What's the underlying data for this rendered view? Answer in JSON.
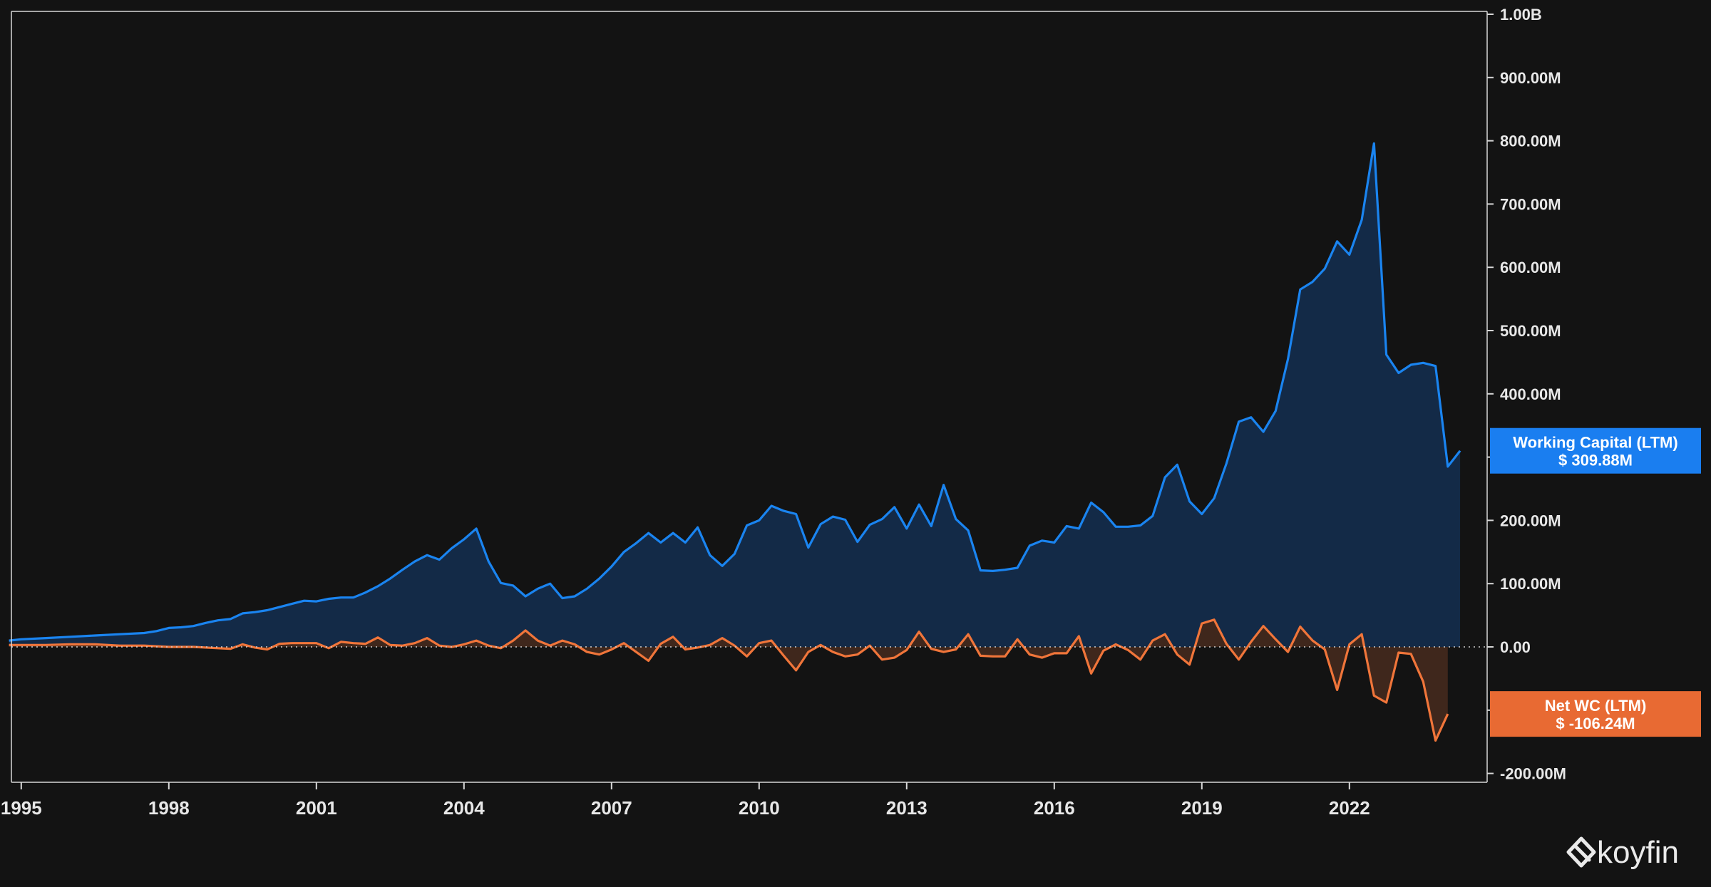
{
  "chart_data": {
    "type": "area",
    "title": "",
    "xlabel": "",
    "ylabel": "",
    "xlim": [
      1994.8,
      2024.8
    ],
    "ylim": [
      -220,
      1000
    ],
    "grid": false,
    "x_tick_labels": [
      "1995",
      "1998",
      "2001",
      "2004",
      "2007",
      "2010",
      "2013",
      "2016",
      "2019",
      "2022"
    ],
    "y_ticks": [
      {
        "value": 1000,
        "label": "1.00B"
      },
      {
        "value": 900,
        "label": "900.00M"
      },
      {
        "value": 800,
        "label": "800.00M"
      },
      {
        "value": 700,
        "label": "700.00M"
      },
      {
        "value": 600,
        "label": "600.00M"
      },
      {
        "value": 500,
        "label": "500.00M"
      },
      {
        "value": 400,
        "label": "400.00M"
      },
      {
        "value": 300,
        "label": "300.00M"
      },
      {
        "value": 200,
        "label": "200.00M"
      },
      {
        "value": 100,
        "label": "100.00M"
      },
      {
        "value": 0,
        "label": "0.00"
      },
      {
        "value": -100,
        "label": "-100.00M"
      },
      {
        "value": -200,
        "label": "-200.00M"
      }
    ],
    "unit": "M",
    "series": [
      {
        "name": "Working Capital (LTM)",
        "color": "#1a84f0",
        "fill": "#132a47",
        "last_value_label": "$ 309.88M",
        "points": [
          [
            1994.75,
            10
          ],
          [
            1995.0,
            12
          ],
          [
            1995.5,
            14
          ],
          [
            1996.0,
            16
          ],
          [
            1996.5,
            18
          ],
          [
            1997.0,
            20
          ],
          [
            1997.5,
            22
          ],
          [
            1997.75,
            25
          ],
          [
            1998.0,
            30
          ],
          [
            1998.25,
            31
          ],
          [
            1998.5,
            33
          ],
          [
            1998.75,
            38
          ],
          [
            1999.0,
            42
          ],
          [
            1999.25,
            44
          ],
          [
            1999.5,
            53
          ],
          [
            1999.75,
            55
          ],
          [
            2000.0,
            58
          ],
          [
            2000.25,
            63
          ],
          [
            2000.5,
            68
          ],
          [
            2000.75,
            73
          ],
          [
            2001.0,
            72
          ],
          [
            2001.25,
            76
          ],
          [
            2001.5,
            78
          ],
          [
            2001.75,
            78
          ],
          [
            2002.0,
            86
          ],
          [
            2002.25,
            96
          ],
          [
            2002.5,
            108
          ],
          [
            2002.75,
            122
          ],
          [
            2003.0,
            135
          ],
          [
            2003.25,
            145
          ],
          [
            2003.5,
            138
          ],
          [
            2003.75,
            156
          ],
          [
            2004.0,
            170
          ],
          [
            2004.25,
            187
          ],
          [
            2004.5,
            135
          ],
          [
            2004.75,
            101
          ],
          [
            2005.0,
            97
          ],
          [
            2005.25,
            80
          ],
          [
            2005.5,
            92
          ],
          [
            2005.75,
            100
          ],
          [
            2006.0,
            77
          ],
          [
            2006.25,
            80
          ],
          [
            2006.5,
            92
          ],
          [
            2006.75,
            108
          ],
          [
            2007.0,
            127
          ],
          [
            2007.25,
            150
          ],
          [
            2007.5,
            164
          ],
          [
            2007.75,
            180
          ],
          [
            2008.0,
            165
          ],
          [
            2008.25,
            180
          ],
          [
            2008.5,
            165
          ],
          [
            2008.75,
            189
          ],
          [
            2009.0,
            145
          ],
          [
            2009.25,
            128
          ],
          [
            2009.5,
            147
          ],
          [
            2009.75,
            192
          ],
          [
            2010.0,
            200
          ],
          [
            2010.25,
            223
          ],
          [
            2010.5,
            215
          ],
          [
            2010.75,
            210
          ],
          [
            2011.0,
            157
          ],
          [
            2011.25,
            194
          ],
          [
            2011.5,
            206
          ],
          [
            2011.75,
            201
          ],
          [
            2012.0,
            166
          ],
          [
            2012.25,
            193
          ],
          [
            2012.5,
            202
          ],
          [
            2012.75,
            221
          ],
          [
            2013.0,
            187
          ],
          [
            2013.25,
            225
          ],
          [
            2013.5,
            191
          ],
          [
            2013.75,
            256
          ],
          [
            2014.0,
            202
          ],
          [
            2014.25,
            184
          ],
          [
            2014.5,
            121
          ],
          [
            2014.75,
            120
          ],
          [
            2015.0,
            122
          ],
          [
            2015.25,
            125
          ],
          [
            2015.5,
            160
          ],
          [
            2015.75,
            168
          ],
          [
            2016.0,
            165
          ],
          [
            2016.25,
            191
          ],
          [
            2016.5,
            187
          ],
          [
            2016.75,
            228
          ],
          [
            2017.0,
            213
          ],
          [
            2017.25,
            190
          ],
          [
            2017.5,
            190
          ],
          [
            2017.75,
            192
          ],
          [
            2018.0,
            207
          ],
          [
            2018.25,
            268
          ],
          [
            2018.5,
            288
          ],
          [
            2018.75,
            230
          ],
          [
            2019.0,
            210
          ],
          [
            2019.25,
            235
          ],
          [
            2019.5,
            290
          ],
          [
            2019.75,
            356
          ],
          [
            2020.0,
            363
          ],
          [
            2020.25,
            340
          ],
          [
            2020.5,
            373
          ],
          [
            2020.75,
            455
          ],
          [
            2021.0,
            565
          ],
          [
            2021.25,
            577
          ],
          [
            2021.5,
            598
          ],
          [
            2021.75,
            641
          ],
          [
            2022.0,
            620
          ],
          [
            2022.25,
            675
          ],
          [
            2022.5,
            796
          ],
          [
            2022.75,
            462
          ],
          [
            2023.0,
            433
          ],
          [
            2023.25,
            446
          ],
          [
            2023.5,
            449
          ],
          [
            2023.75,
            444
          ],
          [
            2024.0,
            285
          ],
          [
            2024.25,
            310
          ]
        ]
      },
      {
        "name": "Net WC (LTM)",
        "color": "#f0753a",
        "fill": "#3f271c",
        "last_value_label": "$ -106.24M",
        "points": [
          [
            1994.75,
            3
          ],
          [
            1995.0,
            3
          ],
          [
            1995.5,
            3
          ],
          [
            1996.0,
            4
          ],
          [
            1996.5,
            4
          ],
          [
            1997.0,
            2
          ],
          [
            1997.5,
            2
          ],
          [
            1998.0,
            0
          ],
          [
            1998.5,
            0
          ],
          [
            1999.0,
            -2
          ],
          [
            1999.25,
            -3
          ],
          [
            1999.5,
            4
          ],
          [
            1999.75,
            -1
          ],
          [
            2000.0,
            -4
          ],
          [
            2000.25,
            5
          ],
          [
            2000.5,
            6
          ],
          [
            2000.75,
            6
          ],
          [
            2001.0,
            6
          ],
          [
            2001.25,
            -2
          ],
          [
            2001.5,
            8
          ],
          [
            2001.75,
            6
          ],
          [
            2002.0,
            5
          ],
          [
            2002.25,
            15
          ],
          [
            2002.5,
            3
          ],
          [
            2002.75,
            2
          ],
          [
            2003.0,
            6
          ],
          [
            2003.25,
            14
          ],
          [
            2003.5,
            2
          ],
          [
            2003.75,
            0
          ],
          [
            2004.0,
            4
          ],
          [
            2004.25,
            10
          ],
          [
            2004.5,
            2
          ],
          [
            2004.75,
            -2
          ],
          [
            2005.0,
            10
          ],
          [
            2005.25,
            26
          ],
          [
            2005.5,
            10
          ],
          [
            2005.75,
            2
          ],
          [
            2006.0,
            10
          ],
          [
            2006.25,
            4
          ],
          [
            2006.5,
            -8
          ],
          [
            2006.75,
            -12
          ],
          [
            2007.0,
            -4
          ],
          [
            2007.25,
            6
          ],
          [
            2007.5,
            -8
          ],
          [
            2007.75,
            -22
          ],
          [
            2008.0,
            5
          ],
          [
            2008.25,
            16
          ],
          [
            2008.5,
            -4
          ],
          [
            2008.75,
            -1
          ],
          [
            2009.0,
            3
          ],
          [
            2009.25,
            14
          ],
          [
            2009.5,
            2
          ],
          [
            2009.75,
            -15
          ],
          [
            2010.0,
            6
          ],
          [
            2010.25,
            10
          ],
          [
            2010.5,
            -14
          ],
          [
            2010.75,
            -37
          ],
          [
            2011.0,
            -8
          ],
          [
            2011.25,
            3
          ],
          [
            2011.5,
            -8
          ],
          [
            2011.75,
            -15
          ],
          [
            2012.0,
            -12
          ],
          [
            2012.25,
            2
          ],
          [
            2012.5,
            -20
          ],
          [
            2012.75,
            -17
          ],
          [
            2013.0,
            -5
          ],
          [
            2013.25,
            24
          ],
          [
            2013.5,
            -3
          ],
          [
            2013.75,
            -8
          ],
          [
            2014.0,
            -4
          ],
          [
            2014.25,
            20
          ],
          [
            2014.5,
            -14
          ],
          [
            2014.75,
            -15
          ],
          [
            2015.0,
            -15
          ],
          [
            2015.25,
            12
          ],
          [
            2015.5,
            -12
          ],
          [
            2015.75,
            -17
          ],
          [
            2016.0,
            -10
          ],
          [
            2016.25,
            -10
          ],
          [
            2016.5,
            17
          ],
          [
            2016.75,
            -42
          ],
          [
            2017.0,
            -6
          ],
          [
            2017.25,
            4
          ],
          [
            2017.5,
            -5
          ],
          [
            2017.75,
            -20
          ],
          [
            2018.0,
            10
          ],
          [
            2018.25,
            20
          ],
          [
            2018.5,
            -12
          ],
          [
            2018.75,
            -28
          ],
          [
            2019.0,
            37
          ],
          [
            2019.25,
            43
          ],
          [
            2019.5,
            5
          ],
          [
            2019.75,
            -20
          ],
          [
            2020.0,
            8
          ],
          [
            2020.25,
            33
          ],
          [
            2020.5,
            12
          ],
          [
            2020.75,
            -8
          ],
          [
            2021.0,
            32
          ],
          [
            2021.25,
            10
          ],
          [
            2021.5,
            -4
          ],
          [
            2021.75,
            -68
          ],
          [
            2022.0,
            4
          ],
          [
            2022.25,
            20
          ],
          [
            2022.5,
            -77
          ],
          [
            2022.75,
            -88
          ],
          [
            2023.0,
            -9
          ],
          [
            2023.25,
            -11
          ],
          [
            2023.5,
            -55
          ],
          [
            2023.75,
            -148
          ],
          [
            2024.0,
            -106
          ]
        ]
      }
    ]
  },
  "branding": {
    "logo_text": "koyfin"
  }
}
